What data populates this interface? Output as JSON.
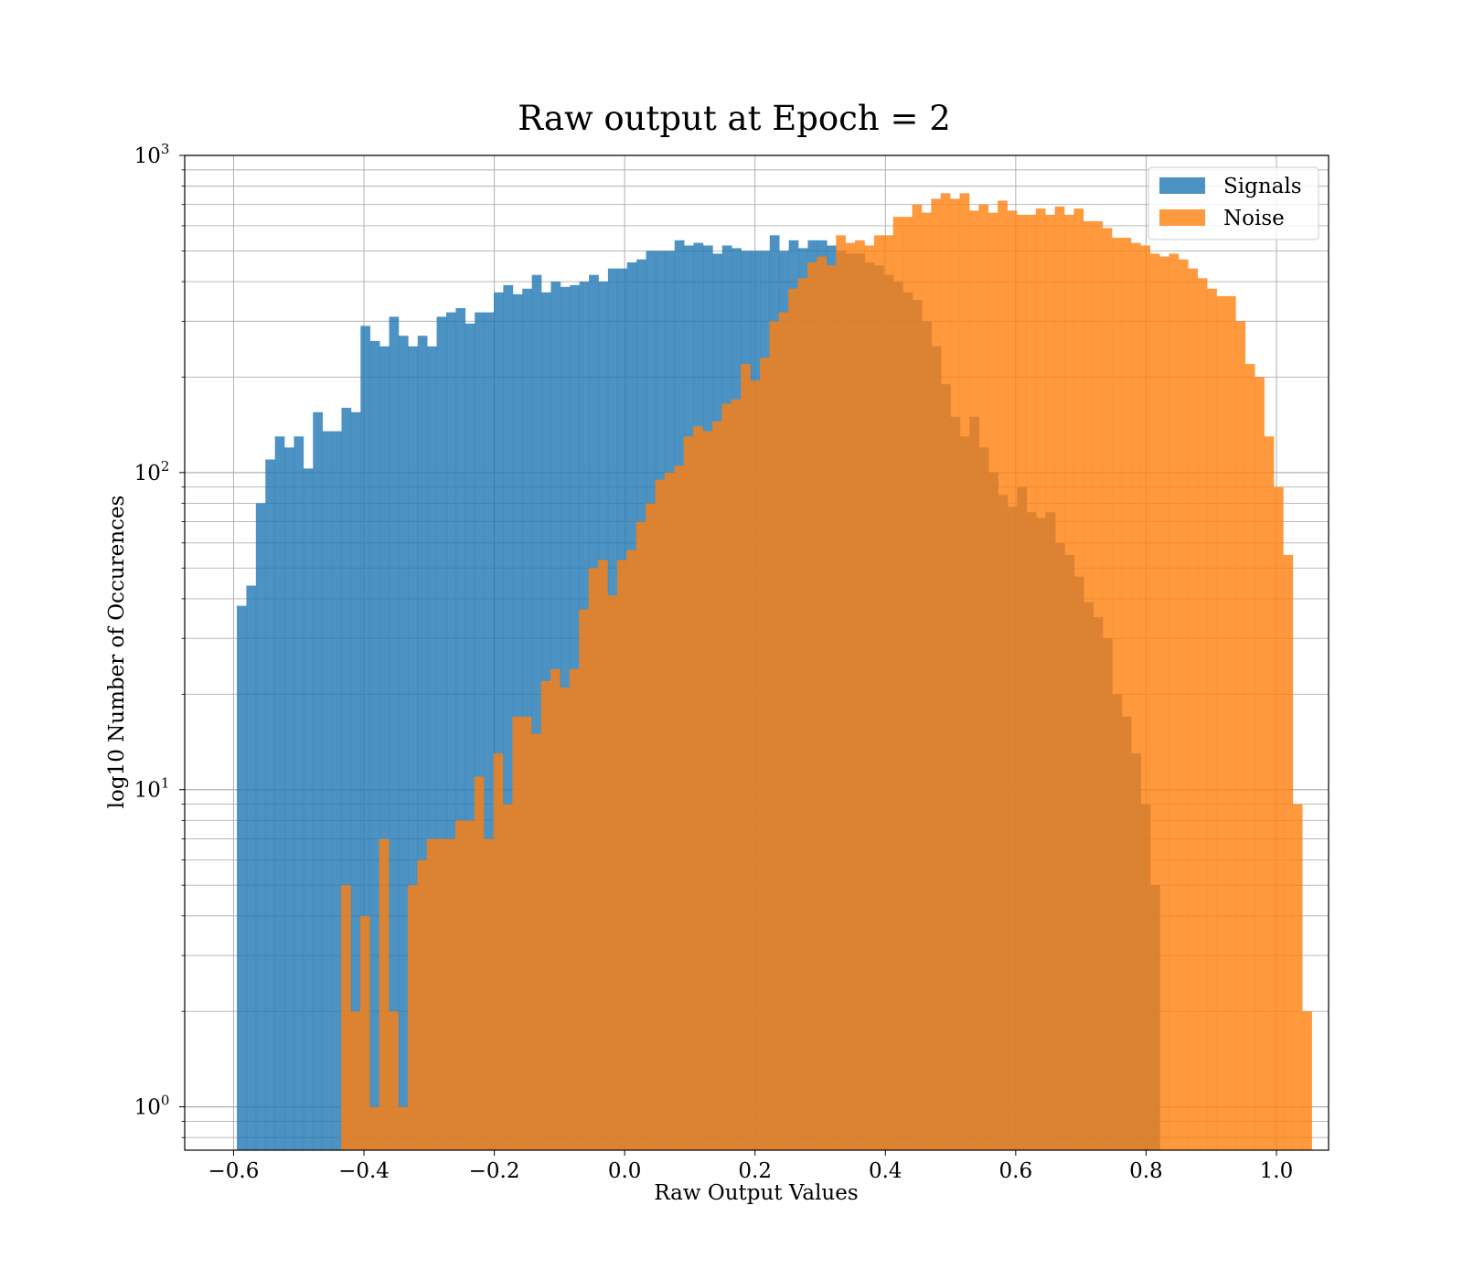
{
  "chart_data": {
    "type": "bar",
    "title": "Raw output at Epoch = 2",
    "xlabel": "Raw Output Values",
    "ylabel": "log10 Number of Occurences",
    "xlim": [
      -0.675,
      1.08
    ],
    "ylim": [
      0.73,
      1000
    ],
    "y_scale": "log",
    "grid": true,
    "legend_position": "top-right",
    "bin_width": 0.0146,
    "x_ticks": [
      {
        "value": -0.6,
        "label": "−0.6"
      },
      {
        "value": -0.4,
        "label": "−0.4"
      },
      {
        "value": -0.2,
        "label": "−0.2"
      },
      {
        "value": 0.0,
        "label": "0.0"
      },
      {
        "value": 0.2,
        "label": "0.2"
      },
      {
        "value": 0.4,
        "label": "0.4"
      },
      {
        "value": 0.6,
        "label": "0.6"
      },
      {
        "value": 0.8,
        "label": "0.8"
      },
      {
        "value": 1.0,
        "label": "1.0"
      }
    ],
    "y_ticks": [
      {
        "value": 1,
        "base": "10",
        "exp": "0"
      },
      {
        "value": 10,
        "base": "10",
        "exp": "1"
      },
      {
        "value": 100,
        "base": "10",
        "exp": "2"
      },
      {
        "value": 1000,
        "base": "10",
        "exp": "3"
      }
    ],
    "series": [
      {
        "name": "Signals",
        "color": "#1f77b4",
        "alpha": 0.8,
        "x_start": -0.595,
        "values": [
          38,
          44,
          80,
          110,
          130,
          120,
          130,
          103,
          155,
          135,
          135,
          160,
          155,
          290,
          260,
          250,
          310,
          270,
          250,
          270,
          250,
          310,
          320,
          330,
          295,
          320,
          320,
          370,
          390,
          365,
          380,
          420,
          370,
          400,
          385,
          390,
          400,
          420,
          400,
          440,
          440,
          460,
          470,
          500,
          500,
          500,
          540,
          520,
          530,
          520,
          490,
          520,
          510,
          500,
          500,
          500,
          560,
          500,
          540,
          510,
          540,
          540,
          520,
          500,
          490,
          490,
          460,
          450,
          420,
          400,
          370,
          350,
          300,
          250,
          190,
          150,
          130,
          150,
          120,
          100,
          85,
          78,
          90,
          75,
          72,
          75,
          60,
          55,
          47,
          39,
          35,
          30,
          20,
          17,
          13,
          9,
          5
        ]
      },
      {
        "name": "Noise",
        "color": "#ff7f0e",
        "alpha": 0.8,
        "x_start": -0.435,
        "values": [
          5,
          2,
          4,
          1,
          7,
          2,
          1,
          5,
          6,
          7,
          7,
          7,
          8,
          8,
          11,
          7,
          13,
          9,
          17,
          17,
          15,
          22,
          24,
          21,
          24,
          37,
          50,
          53,
          41,
          53,
          57,
          70,
          80,
          95,
          100,
          105,
          130,
          140,
          135,
          145,
          165,
          170,
          220,
          195,
          230,
          300,
          320,
          380,
          410,
          460,
          480,
          450,
          560,
          530,
          540,
          520,
          560,
          560,
          640,
          640,
          700,
          660,
          730,
          760,
          730,
          760,
          670,
          700,
          660,
          720,
          670,
          650,
          650,
          680,
          650,
          690,
          650,
          680,
          620,
          620,
          590,
          550,
          550,
          530,
          520,
          490,
          480,
          490,
          470,
          440,
          410,
          380,
          360,
          360,
          300,
          220,
          200,
          130,
          90,
          55,
          9,
          2
        ]
      }
    ]
  }
}
